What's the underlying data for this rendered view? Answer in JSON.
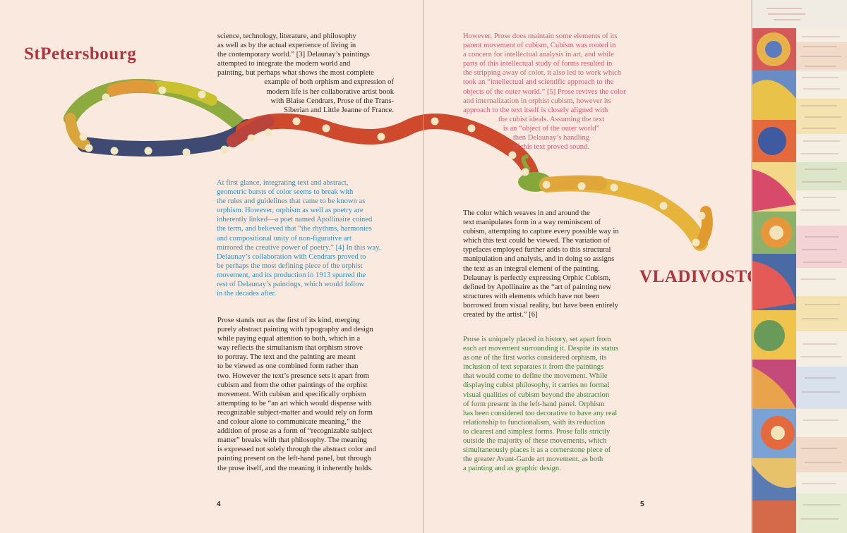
{
  "cities": {
    "left": "StPetersbourg",
    "right": "VLADIVOSTOK"
  },
  "colors": {
    "background": "#fae9df",
    "city": "#b0343f",
    "body_text": "#2a2622",
    "blue_text": "#2c8fc0",
    "pink_text": "#d25a7c",
    "green_text": "#3a7d38",
    "route_red": "#cf4a2c",
    "route_green": "#7aa640",
    "route_navy": "#3f4a72",
    "route_orange": "#e0a240",
    "route_yellow": "#eab93a",
    "dots": "#f1e7c4"
  },
  "page_left": {
    "number": "4",
    "para1_lines": [
      "science, technology, literature, and philosophy",
      "as well as by the actual experience of living in",
      "the contemporary world.” [3] Delaunay’s paintings",
      "attempted to integrate the modern world and",
      "painting, but perhaps what shows the most complete",
      "example of both orphism and expression of",
      "modern life is her collaborative artist book",
      "with Blaise Cendrars, Prose of the Trans-",
      "Siberian and Little Jeanne of France."
    ],
    "para2_lines": [
      "At first glance, integrating text and abstract,",
      "geometric bursts of color seems to break with",
      "the rules and guidelines that came to be known as",
      "orphism. However, orphism as well as poetry are",
      "inherently linked—a poet named Apollinaire coined",
      "the term, and believed that “the rhythms, harmonies",
      "and compositional unity of non-figurative art",
      "mirrored the creative power of poetry.” [4] In this way,",
      "Delaunay’s collaboration with Cendrars proved to",
      "be perhaps the most defining piece of the orphist",
      "movement, and its production in 1913 spurred the",
      "rest of Delaunay’s paintings, which would follow",
      "in the decades after."
    ],
    "para3_lines": [
      "Prose stands out as the first of its kind, merging",
      "purely abstract painting with typography and design",
      "while paying equal attention to both, which in a",
      "way reflects the simultanism that orphism strove",
      "to portray. The text and the painting are meant",
      "to be viewed as one combined form rather than",
      "two. However the text’s presence sets it apart from",
      "cubism and from the other paintings of the orphist",
      "movement. With cubism and specifically orphism",
      "attempting to be “an art which would dispense with",
      "recognizable subject-matter and would rely on form",
      "and colour alone to communicate meaning,” the",
      "addition of prose as a form of “recognizable subject",
      "matter” breaks with that philosophy. The meaning",
      "is expressed not solely through the abstract color and",
      "painting present on the left-hand panel, but through",
      "the prose itself, and the meaning it inherently holds."
    ]
  },
  "page_right": {
    "number": "5",
    "para1_lines": [
      "However, Prose does maintain some elements of its",
      "parent movement of cubism, Cubism was rooted in",
      "a concern for intellectual analysis in art, and while",
      "parts of this intellectual study of forms resulted in",
      "the stripping away of color, it also led to work which",
      "took an “intellectual and scientific approach to the",
      "objects of the outer world.” [5] Prose revives the color",
      "and internalization in orphist cubism, however its",
      "approach to the text itself is closely aligned with",
      "the cubist ideals. Assuming the text",
      "is an “object of the outer world”",
      "then Delaunay’s handling",
      "of this text proved sound."
    ],
    "para2_lines": [
      "The color which weaves in and around the",
      "text manipulates form in a way reminiscent of",
      "cubism, attempting to capture every possible way in",
      "which this text could be viewed. The variation of",
      "typefaces employed further adds to this structural",
      "manipulation and analysis, and in doing so assigns",
      "the text as an integral element of the painting.",
      "Delaunay is perfectly expressing Orphic Cubism,",
      "defined by Apollinaire as the “art of painting new",
      "structures with elements which have not been",
      "borrowed from visual reality, but have been entirely",
      "created by the artist.” [6]"
    ],
    "para3_lines": [
      "Prose is uniquely placed in history, set apart from",
      "each art movement surrounding it. Despite its status",
      "as one of the first works considered orphism, its",
      "inclusion of text separates it from the paintings",
      "that would come to define the movement. While",
      "displaying cubist philosophy, it carries no formal",
      "visual qualities of cubism beyond the abstraction",
      "of form present in the left-hand panel. Orphism",
      "has been considered too decorative to have any real",
      "relationship to functionalism, with its reduction",
      "to clearest and simplest forms. Prose falls strictly",
      "outside the majority of these movements, which",
      "simultaneously places it as a cornerstone piece of",
      "the greater Avant-Garde art movement, as both",
      "a painting and as graphic design."
    ]
  }
}
